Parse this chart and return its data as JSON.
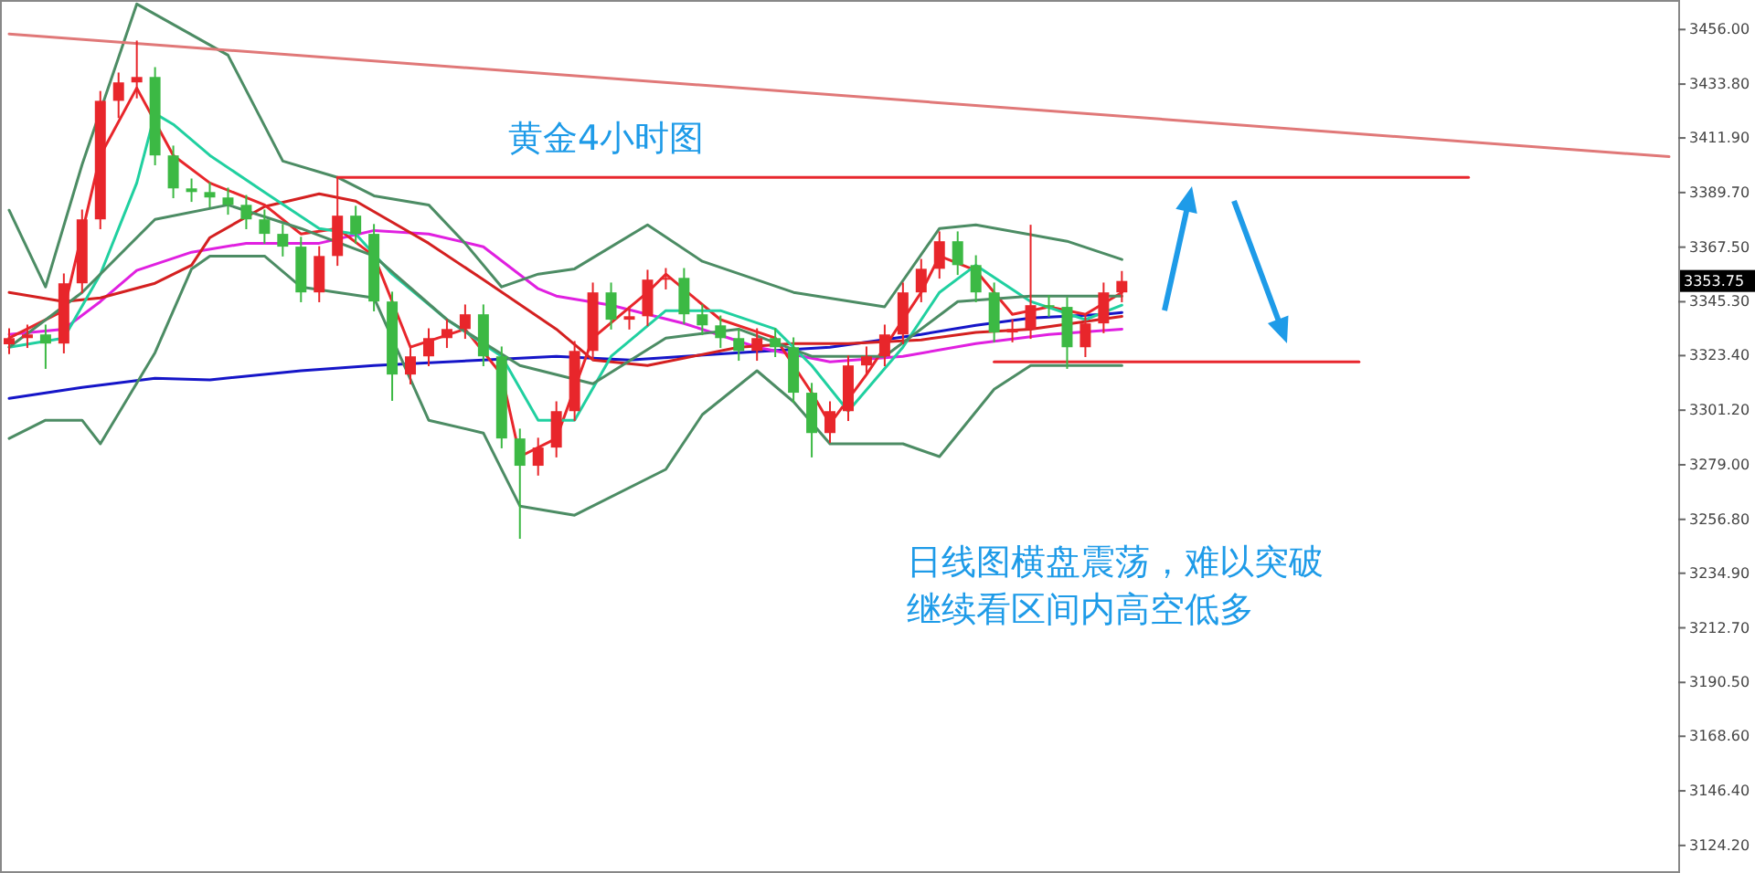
{
  "chart_data": {
    "type": "candlestick",
    "title": "黄金4小时图",
    "categories": [
      null,
      null,
      null,
      null,
      null,
      null,
      null,
      null,
      null,
      null,
      null,
      null,
      null,
      null,
      null,
      null,
      null,
      null,
      null,
      null,
      null,
      null,
      null,
      null,
      null,
      null,
      null,
      null,
      null,
      null,
      null,
      null,
      null,
      null,
      null,
      null,
      null,
      null,
      null,
      null,
      null,
      null,
      null,
      null,
      null,
      null,
      null,
      null,
      null,
      null,
      null,
      null,
      null,
      null,
      null,
      null,
      null,
      null,
      null,
      null,
      null,
      null,
      null,
      null,
      null,
      null,
      null,
      null,
      null,
      null,
      null,
      null,
      null,
      null,
      null,
      null,
      null,
      null,
      null,
      null,
      null,
      null,
      null,
      null,
      null,
      null,
      null,
      null,
      null,
      null,
      null,
      null
    ],
    "colors": [
      "#e8262b",
      "#e8262b",
      "#3cb944",
      "#e8262b",
      "#e8262b",
      "#e8262b",
      "#e8262b",
      "#e8262b",
      "#3cb944",
      "#3cb944",
      "#3cb944",
      "#3cb944",
      "#3cb944",
      "#3cb944",
      "#3cb944",
      "#3cb944",
      "#3cb944",
      "#e8262b",
      "#e8262b",
      "#3cb944",
      "#3cb944",
      "#3cb944",
      "#e8262b",
      "#e8262b",
      "#e8262b",
      "#e8262b",
      "#3cb944",
      "#3cb944",
      "#3cb944",
      "#e8262b",
      "#e8262b",
      "#e8262b",
      "#e8262b",
      "#3cb944",
      "#e8262b",
      "#e8262b",
      "#e8262b",
      "#3cb944",
      "#3cb944",
      "#3cb944",
      "#3cb944",
      "#e8262b",
      "#3cb944",
      "#3cb944",
      "#3cb944",
      "#e8262b",
      "#e8262b",
      "#e8262b",
      "#e8262b",
      "#e8262b",
      "#e8262b",
      "#e8262b",
      "#3cb944",
      "#3cb944",
      "#3cb944",
      "#e8262b",
      "#e8262b",
      "#3cb944",
      "#3cb944",
      "#e8262b",
      "#e8262b",
      "#e8262b",
      null,
      null,
      null,
      null,
      null,
      null,
      null,
      null,
      null,
      null,
      null,
      null,
      null,
      null,
      null,
      null,
      null,
      null,
      null,
      null,
      null,
      null,
      null,
      null,
      null,
      null,
      null,
      null,
      null,
      null
    ],
    "ohlc": [
      [
        3328.0,
        3334.5,
        3324.0,
        3330.5
      ],
      [
        3330.5,
        3336.0,
        3326.5,
        3332.0
      ],
      [
        3332.0,
        3336.0,
        3318.0,
        3328.3
      ],
      [
        3328.3,
        3356.8,
        3324.3,
        3352.8
      ],
      [
        3352.8,
        3382.8,
        3348.8,
        3378.8
      ],
      [
        3378.8,
        3431.0,
        3374.8,
        3427.0
      ],
      [
        3427.0,
        3438.5,
        3420.0,
        3434.5
      ],
      [
        3434.5,
        3451.5,
        3428.0,
        3436.7
      ],
      [
        3436.7,
        3440.7,
        3400.8,
        3404.8
      ],
      [
        3404.8,
        3408.8,
        3387.4,
        3391.4
      ],
      [
        3391.4,
        3395.4,
        3385.9,
        3389.9
      ],
      [
        3389.9,
        3393.9,
        3383.7,
        3387.7
      ],
      [
        3387.7,
        3391.7,
        3380.7,
        3384.7
      ],
      [
        3384.7,
        3388.7,
        3374.8,
        3378.8
      ],
      [
        3378.8,
        3382.8,
        3368.9,
        3372.9
      ],
      [
        3372.9,
        3376.9,
        3363.7,
        3367.7
      ],
      [
        3367.7,
        3371.7,
        3345.1,
        3349.1
      ],
      [
        3349.1,
        3367.9,
        3345.1,
        3363.9
      ],
      [
        3363.9,
        3395.9,
        3359.9,
        3380.3
      ],
      [
        3380.3,
        3384.3,
        3368.9,
        3372.9
      ],
      [
        3372.9,
        3376.9,
        3341.4,
        3345.4
      ],
      [
        3345.4,
        3349.4,
        3305.0,
        3315.7
      ],
      [
        3315.7,
        3327.1,
        3311.7,
        3323.1
      ],
      [
        3323.1,
        3334.5,
        3319.1,
        3330.5
      ],
      [
        3330.5,
        3338.2,
        3326.5,
        3334.2
      ],
      [
        3334.2,
        3344.2,
        3330.2,
        3340.2
      ],
      [
        3340.2,
        3344.2,
        3319.1,
        3323.1
      ],
      [
        3323.1,
        3327.1,
        3285.7,
        3289.7
      ],
      [
        3289.7,
        3293.7,
        3248.9,
        3278.6
      ],
      [
        3278.6,
        3290.0,
        3274.6,
        3286.0
      ],
      [
        3286.0,
        3304.8,
        3282.0,
        3300.8
      ],
      [
        3300.8,
        3329.3,
        3296.8,
        3325.3
      ],
      [
        3325.3,
        3353.1,
        3321.3,
        3349.1
      ],
      [
        3349.1,
        3353.1,
        3334.0,
        3338.0
      ],
      [
        3338.0,
        3343.4,
        3334.0,
        3339.4
      ],
      [
        3339.4,
        3358.3,
        3335.4,
        3354.3
      ],
      [
        3354.3,
        3359.0,
        3350.3,
        3355.0
      ],
      [
        3355.0,
        3359.0,
        3336.2,
        3340.2
      ],
      [
        3340.2,
        3344.2,
        3331.7,
        3335.7
      ],
      [
        3335.7,
        3339.7,
        3326.5,
        3330.5
      ],
      [
        3330.5,
        3334.5,
        3321.3,
        3325.3
      ],
      [
        3325.3,
        3334.5,
        3321.3,
        3330.5
      ],
      [
        3330.5,
        3334.5,
        3322.8,
        3326.8
      ],
      [
        3326.8,
        3330.8,
        3304.3,
        3308.3
      ],
      [
        3308.3,
        3312.3,
        3282.0,
        3291.9
      ],
      [
        3291.9,
        3304.8,
        3287.9,
        3300.8
      ],
      [
        3300.8,
        3323.4,
        3296.8,
        3319.4
      ],
      [
        3319.4,
        3327.1,
        3315.4,
        3323.1
      ],
      [
        3323.1,
        3336.0,
        3319.1,
        3332.0
      ],
      [
        3332.0,
        3353.1,
        3328.0,
        3349.1
      ],
      [
        3349.1,
        3362.7,
        3345.1,
        3358.7
      ],
      [
        3358.7,
        3373.9,
        3354.7,
        3369.9
      ],
      [
        3369.9,
        3373.9,
        3356.2,
        3360.2
      ],
      [
        3360.2,
        3364.2,
        3345.1,
        3349.1
      ],
      [
        3349.1,
        3353.1,
        3328.8,
        3332.8
      ],
      [
        3332.8,
        3338.2,
        3328.8,
        3334.2
      ],
      [
        3334.2,
        3376.6,
        3330.2,
        3343.9
      ],
      [
        3343.9,
        3347.9,
        3339.2,
        3343.2
      ],
      [
        3343.2,
        3347.2,
        3318.0,
        3326.8
      ],
      [
        3326.8,
        3340.5,
        3322.8,
        3336.5
      ],
      [
        3336.5,
        3353.1,
        3332.5,
        3349.1
      ],
      [
        3349.1,
        3357.8,
        3345.1,
        3353.75
      ],
      null,
      null,
      null,
      null,
      null,
      null,
      null,
      null,
      null,
      null,
      null,
      null,
      null,
      null,
      null,
      null,
      null,
      null,
      null,
      null,
      null,
      null,
      null,
      null,
      null,
      null,
      null,
      null,
      null,
      null
    ],
    "series": [
      {
        "type": "line",
        "color": "#1515c8",
        "values": [
          3306.0,
          null,
          null,
          null,
          3310.5,
          null,
          null,
          null,
          3314.2,
          null,
          null,
          3313.5,
          null,
          null,
          null,
          null,
          3317.2,
          null,
          null,
          null,
          3319.4,
          null,
          null,
          null,
          null,
          null,
          3321.6,
          null,
          null,
          null,
          3323.1,
          null,
          null,
          null,
          3321.6,
          null,
          null,
          null,
          null,
          null,
          3324.6,
          null,
          null,
          null,
          null,
          3326.8,
          null,
          null,
          null,
          null,
          3332.0,
          null,
          null,
          3335.7,
          null,
          null,
          3338.7,
          null,
          null,
          null,
          3340.2,
          3340.9,
          null,
          null,
          null,
          null,
          null,
          null,
          null,
          null,
          null,
          null,
          null,
          null,
          null,
          null,
          null,
          null,
          null,
          null,
          null,
          null,
          null,
          null,
          null,
          null,
          null,
          null,
          null,
          null,
          null,
          null
        ]
      },
      {
        "type": "line",
        "color": "#e020e0",
        "values": [
          3332.0,
          null,
          null,
          3334.2,
          null,
          3345.4,
          null,
          3358.0,
          null,
          null,
          3365.4,
          null,
          null,
          3369.1,
          null,
          null,
          null,
          3369.1,
          null,
          null,
          3374.3,
          null,
          null,
          3372.9,
          null,
          null,
          3367.7,
          null,
          null,
          3350.6,
          3347.6,
          null,
          null,
          3343.9,
          null,
          null,
          null,
          3336.5,
          null,
          null,
          null,
          3326.8,
          null,
          null,
          null,
          3320.9,
          null,
          null,
          null,
          3323.1,
          null,
          null,
          null,
          3328.3,
          null,
          null,
          null,
          3332.0,
          null,
          null,
          null,
          3334.2,
          null,
          null,
          null,
          null,
          null,
          null,
          null,
          null,
          null,
          null,
          null,
          null,
          null,
          null,
          null,
          null,
          null,
          null,
          null,
          null,
          null,
          null,
          null,
          null,
          null,
          null,
          null,
          null,
          null,
          null
        ]
      },
      {
        "type": "line",
        "color": "#d42020",
        "values": [
          3349.1,
          null,
          null,
          3345.4,
          null,
          3346.9,
          null,
          null,
          3352.8,
          null,
          3360.2,
          3371.4,
          null,
          null,
          3384.0,
          null,
          null,
          3389.2,
          null,
          3386.2,
          null,
          null,
          null,
          3369.1,
          null,
          null,
          3354.3,
          null,
          null,
          null,
          3334.2,
          null,
          3321.6,
          null,
          null,
          3319.4,
          null,
          null,
          null,
          null,
          3326.8,
          null,
          null,
          3328.3,
          null,
          null,
          3328.3,
          null,
          null,
          null,
          3329.8,
          null,
          null,
          3332.8,
          null,
          null,
          3334.2,
          null,
          null,
          null,
          null,
          3339.4,
          null,
          null,
          null,
          null,
          null,
          null,
          null,
          null,
          null,
          null,
          null,
          null,
          null,
          null,
          null,
          null,
          null,
          null,
          null,
          null,
          null,
          null,
          null,
          null,
          null,
          null,
          null,
          null,
          null,
          null
        ]
      },
      {
        "type": "line",
        "color": "#e8262b",
        "values": [
          3330.5,
          null,
          null,
          3341.7,
          null,
          3404.8,
          null,
          3432.2,
          null,
          3404.8,
          null,
          3393.6,
          null,
          null,
          3384.7,
          null,
          3372.9,
          null,
          3375.1,
          null,
          3363.9,
          null,
          3326.8,
          null,
          null,
          3334.2,
          null,
          3315.7,
          3282.3,
          null,
          3289.7,
          null,
          3330.5,
          null,
          null,
          3349.1,
          3356.5,
          null,
          null,
          3338.0,
          null,
          null,
          3330.5,
          null,
          3308.3,
          3295.6,
          null,
          3315.7,
          null,
          null,
          3349.1,
          3363.9,
          null,
          3358.0,
          null,
          3340.2,
          null,
          3343.2,
          null,
          3340.2,
          null,
          3349.1,
          null,
          null,
          null,
          null,
          null,
          null,
          null,
          null,
          null,
          null,
          null,
          null,
          null,
          null,
          null,
          null,
          null,
          null,
          null,
          null,
          null,
          null,
          null,
          null,
          null,
          null,
          null,
          null,
          null,
          null
        ]
      },
      {
        "type": "line",
        "color": "#20d0a0",
        "values": [
          3326.8,
          null,
          null,
          3330.5,
          null,
          3356.5,
          null,
          3393.6,
          3421.8,
          3417.4,
          null,
          3404.8,
          null,
          null,
          3389.9,
          null,
          null,
          3375.1,
          null,
          3372.9,
          null,
          3356.5,
          null,
          null,
          3338.0,
          null,
          null,
          3323.1,
          null,
          3297.1,
          null,
          3297.1,
          null,
          3323.1,
          null,
          null,
          3341.7,
          null,
          null,
          3341.7,
          null,
          null,
          3334.2,
          null,
          3319.4,
          null,
          3300.8,
          null,
          null,
          3326.8,
          null,
          3349.1,
          null,
          3360.2,
          null,
          null,
          3345.4,
          null,
          null,
          3338.0,
          null,
          3343.9,
          null,
          null,
          null,
          null,
          null,
          null,
          null,
          null,
          null,
          null,
          null,
          null,
          null,
          null,
          null,
          null,
          null,
          null,
          null,
          null,
          null,
          null,
          null,
          null,
          null,
          null,
          null,
          null,
          null,
          null
        ]
      },
      {
        "type": "line",
        "color": "#4c8c64",
        "values": [
          3382.5,
          null,
          3351.3,
          null,
          3401.1,
          null,
          null,
          3466.4,
          null,
          null,
          null,
          null,
          3445.6,
          null,
          null,
          3402.5,
          null,
          null,
          3395.9,
          null,
          3388.4,
          null,
          null,
          3384.7,
          null,
          3369.1,
          null,
          3351.3,
          null,
          3356.5,
          null,
          3358.7,
          null,
          null,
          null,
          3376.6,
          null,
          null,
          3361.7,
          null,
          null,
          null,
          null,
          3349.1,
          null,
          null,
          null,
          null,
          3343.2,
          null,
          null,
          3375.1,
          null,
          3376.6,
          null,
          null,
          null,
          null,
          3369.9,
          null,
          null,
          3362.5,
          null,
          null,
          null,
          null,
          null,
          null,
          null,
          null,
          null,
          null,
          null,
          null,
          null,
          null,
          null,
          null,
          null,
          null,
          null,
          null,
          null,
          null,
          null,
          null,
          null,
          null,
          null,
          null,
          null,
          null
        ]
      },
      {
        "type": "line",
        "color": "#4c8c64",
        "values": [
          3326.8,
          null,
          null,
          null,
          3349.1,
          null,
          null,
          null,
          3378.8,
          null,
          null,
          null,
          3384.7,
          null,
          null,
          null,
          3375.1,
          null,
          null,
          null,
          3363.9,
          null,
          null,
          null,
          3338.0,
          null,
          null,
          null,
          3319.4,
          null,
          null,
          null,
          3312.0,
          null,
          null,
          null,
          3330.5,
          null,
          null,
          null,
          3334.2,
          null,
          null,
          null,
          3323.1,
          null,
          null,
          null,
          3323.1,
          null,
          null,
          null,
          3345.4,
          null,
          null,
          null,
          3347.6,
          null,
          null,
          null,
          null,
          3347.6,
          null,
          null,
          null,
          null,
          null,
          null,
          null,
          null,
          null,
          null,
          null,
          null,
          null,
          null,
          null,
          null,
          null,
          null,
          null,
          null,
          null,
          null,
          null,
          null,
          null,
          null,
          null,
          null,
          null,
          null
        ]
      },
      {
        "type": "line",
        "color": "#4c8c64",
        "values": [
          3289.7,
          null,
          3297.1,
          null,
          3297.1,
          3287.5,
          null,
          null,
          3324.6,
          null,
          3358.7,
          3363.9,
          null,
          null,
          3363.9,
          null,
          3351.3,
          null,
          null,
          null,
          3346.9,
          null,
          null,
          3297.1,
          null,
          null,
          3291.9,
          null,
          3262.2,
          null,
          null,
          3258.5,
          null,
          null,
          null,
          null,
          3277.1,
          null,
          3299.4,
          null,
          null,
          3317.2,
          null,
          3304.6,
          null,
          3287.5,
          null,
          null,
          null,
          3287.5,
          null,
          3282.3,
          null,
          null,
          3309.7,
          null,
          3319.4,
          null,
          null,
          null,
          null,
          3319.4,
          null,
          null,
          null,
          null,
          null,
          null,
          null,
          null,
          null,
          null,
          null,
          null,
          null,
          null,
          null,
          null,
          null,
          null,
          null,
          null,
          null,
          null,
          null,
          null,
          null,
          null,
          null,
          null,
          null,
          null
        ]
      },
      {
        "type": "line",
        "color": "#e07878",
        "values": [
          3454.2,
          null,
          null,
          null,
          null,
          null,
          null,
          null,
          null,
          null,
          null,
          null,
          null,
          null,
          null,
          null,
          null,
          null,
          null,
          null,
          null,
          null,
          null,
          null,
          null,
          null,
          null,
          null,
          null,
          null,
          null,
          null,
          null,
          null,
          null,
          null,
          null,
          null,
          null,
          null,
          null,
          null,
          null,
          null,
          null,
          null,
          null,
          null,
          null,
          null,
          null,
          null,
          null,
          null,
          null,
          null,
          null,
          null,
          null,
          null,
          null,
          null,
          null,
          null,
          null,
          null,
          null,
          null,
          null,
          null,
          null,
          null,
          null,
          null,
          null,
          null,
          null,
          null,
          null,
          null,
          null,
          null,
          null,
          null,
          null,
          null,
          null,
          null,
          null,
          null,
          null,
          3404.3
        ]
      },
      {
        "type": "line",
        "color": "#e8272e",
        "values": [
          null,
          null,
          null,
          null,
          null,
          null,
          null,
          null,
          null,
          null,
          null,
          null,
          null,
          null,
          null,
          null,
          null,
          null,
          3395.9,
          null,
          null,
          null,
          null,
          null,
          null,
          null,
          null,
          null,
          null,
          null,
          null,
          null,
          null,
          null,
          null,
          null,
          null,
          null,
          null,
          null,
          null,
          null,
          null,
          null,
          null,
          null,
          null,
          null,
          null,
          null,
          null,
          null,
          null,
          null,
          null,
          null,
          null,
          null,
          null,
          null,
          null,
          null,
          null,
          null,
          null,
          null,
          null,
          null,
          null,
          null,
          null,
          null,
          null,
          null,
          null,
          null,
          null,
          null,
          null,
          null,
          3395.9,
          null,
          null,
          null,
          null,
          null,
          null,
          null,
          null,
          null,
          null,
          null
        ]
      },
      {
        "type": "line",
        "color": "#e8272e",
        "values": [
          null,
          null,
          null,
          null,
          null,
          null,
          null,
          null,
          null,
          null,
          null,
          null,
          null,
          null,
          null,
          null,
          null,
          null,
          null,
          null,
          null,
          null,
          null,
          null,
          null,
          null,
          null,
          null,
          null,
          null,
          null,
          null,
          null,
          null,
          null,
          null,
          null,
          null,
          null,
          null,
          null,
          null,
          null,
          null,
          null,
          null,
          null,
          null,
          null,
          null,
          null,
          null,
          null,
          null,
          3320.9,
          null,
          null,
          null,
          null,
          null,
          null,
          null,
          null,
          null,
          null,
          null,
          null,
          null,
          null,
          null,
          null,
          null,
          null,
          null,
          3320.9,
          null,
          null,
          null,
          null,
          null,
          null,
          null,
          null,
          null,
          null,
          null,
          null,
          null,
          null,
          null,
          null,
          null
        ]
      }
    ],
    "ylim": [
      3113,
      3468
    ],
    "yticks": [
      {
        "value": 3456,
        "label": "3456.00"
      },
      {
        "value": 3433.8,
        "label": "3433.80"
      },
      {
        "value": 3411.9,
        "label": "3411.90"
      },
      {
        "value": 3389.7,
        "label": "3389.70"
      },
      {
        "value": 3367.5,
        "label": "3367.50"
      },
      {
        "value": 3345.3,
        "label": "3345.30"
      },
      {
        "value": 3323.4,
        "label": "3323.40"
      },
      {
        "value": 3301.2,
        "label": "3301.20"
      },
      {
        "value": 3279,
        "label": "3279.00"
      },
      {
        "value": 3256.8,
        "label": "3256.80"
      },
      {
        "value": 3234.9,
        "label": "3234.90"
      },
      {
        "value": 3212.7,
        "label": "3212.70"
      },
      {
        "value": 3190.5,
        "label": "3190.50"
      },
      {
        "value": 3168.6,
        "label": "3168.60"
      },
      {
        "value": 3146.4,
        "label": "3146.40"
      },
      {
        "value": 3124.2,
        "label": "3124.20"
      }
    ],
    "annotations": [
      "日线图横盘震荡，难以突破",
      "继续看区间内高空低多",
      "3353.75"
    ],
    "grid": false
  }
}
